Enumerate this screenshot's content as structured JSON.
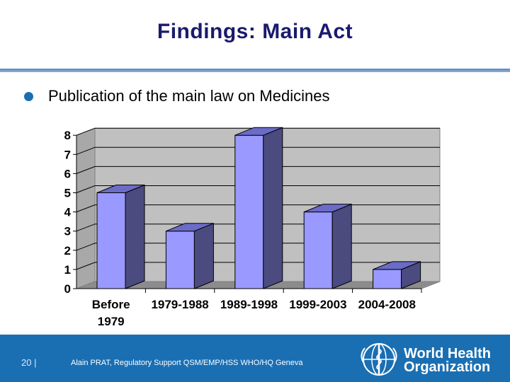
{
  "slide": {
    "title": "Findings: Main Act",
    "bullet": "Publication of the main law on Medicines"
  },
  "footer": {
    "page_number": "20 |",
    "credit": "Alain PRAT, Regulatory Support QSM/EMP/HSS WHO/HQ Geneva",
    "org_line1": "World Health",
    "org_line2": "Organization"
  },
  "colors": {
    "bar_front": "#9999ff",
    "bar_side": "#4b4b80",
    "bar_top": "#6b6bc8",
    "plot_wall": "#c0c0c0",
    "plot_floor": "#8c8c8c",
    "footer": "#1a6fb3"
  },
  "chart_data": {
    "type": "bar",
    "categories": [
      [
        "Before",
        "1979"
      ],
      [
        "1979-1988"
      ],
      [
        "1989-1998"
      ],
      [
        "1999-2003"
      ],
      [
        "2004-2008"
      ]
    ],
    "values": [
      5,
      3,
      8,
      4,
      1
    ],
    "ylim": [
      0,
      8
    ],
    "yticks": [
      0,
      1,
      2,
      3,
      4,
      5,
      6,
      7,
      8
    ],
    "grid": true,
    "style": "3d"
  }
}
